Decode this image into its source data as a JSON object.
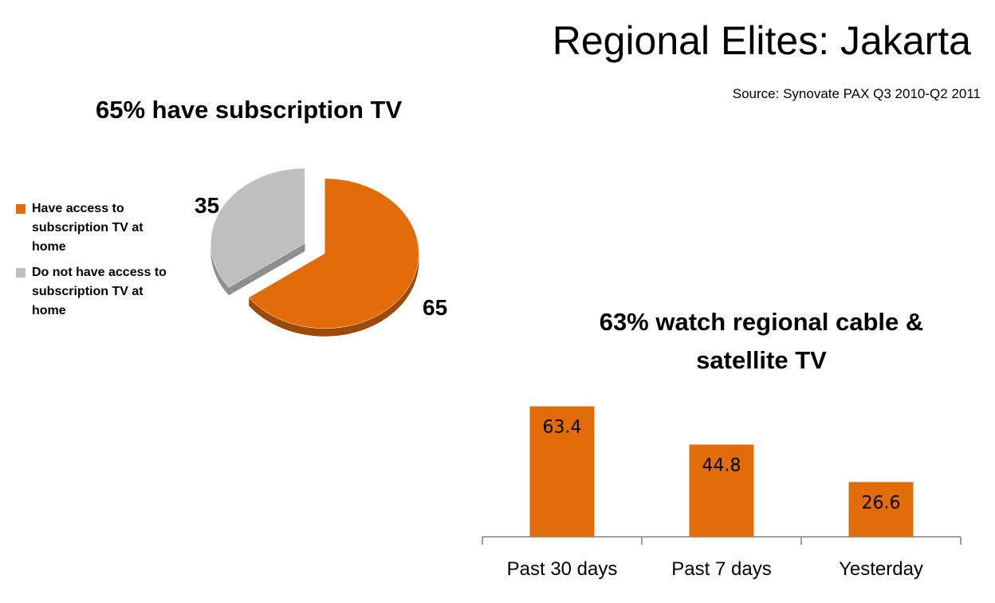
{
  "slide": {
    "title": "Regional Elites: Jakarta",
    "source": "Source: Synovate PAX Q3 2010-Q2 2011"
  },
  "colors": {
    "orange": "#E36C0A",
    "grey": "#BFBFBF"
  },
  "chart_data": [
    {
      "type": "pie",
      "title": "65% have subscription TV",
      "categories": [
        "Have access to subscription TV at home",
        "Do not have access to subscription TV at home"
      ],
      "values": [
        65,
        35
      ],
      "legend_position": "left",
      "exploded": true
    },
    {
      "type": "bar",
      "title": "63% watch regional cable & satellite TV",
      "categories": [
        "Past 30 days",
        "Past 7 days",
        "Yesterday"
      ],
      "values": [
        63.4,
        44.8,
        26.6
      ],
      "data_labels": [
        "63.4",
        "44.8",
        "26.6"
      ],
      "ylim": [
        0,
        100
      ],
      "grid": false,
      "xlabel": "",
      "ylabel": ""
    }
  ]
}
